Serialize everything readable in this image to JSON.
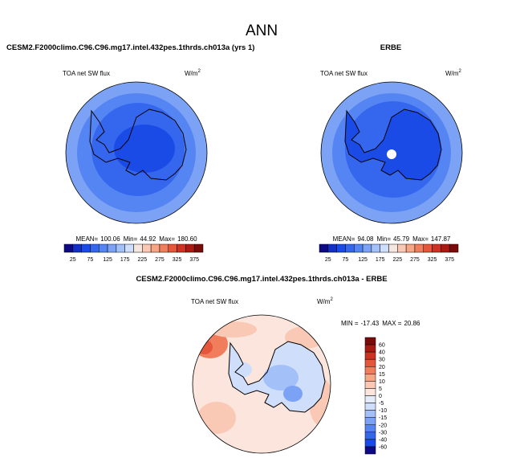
{
  "title": "ANN",
  "panels": [
    {
      "heading": "CESM2.F2000climo.C96.C96.mg17.intel.432pes.1thrds.ch013a (yrs 1)",
      "field": "TOA net SW flux",
      "units": {
        "base": "W/m",
        "sup": "2"
      },
      "stats": [
        {
          "label": "MEAN=",
          "value": "100.06"
        },
        {
          "label": "Min=",
          "value": "44.92"
        },
        {
          "label": "Max=",
          "value": "180.60"
        }
      ]
    },
    {
      "heading": "ERBE",
      "field": "TOA net SW flux",
      "units": {
        "base": "W/m",
        "sup": "2"
      },
      "stats": [
        {
          "label": "MEAN=",
          "value": "94.08"
        },
        {
          "label": "Min=",
          "value": "45.79"
        },
        {
          "label": "Max=",
          "value": "147.87"
        }
      ]
    }
  ],
  "colorbar": {
    "colors": [
      "#0d0a84",
      "#1230c8",
      "#1a4be6",
      "#3567ee",
      "#5585f2",
      "#7ba2f5",
      "#a3c0f8",
      "#cfdefa",
      "#f5e6e0",
      "#f9c9b5",
      "#f6a585",
      "#f07e5c",
      "#e4573c",
      "#cd3223",
      "#a81a12",
      "#7a0b0a"
    ],
    "ticks": [
      25,
      75,
      125,
      175,
      225,
      275,
      325,
      375
    ]
  },
  "difference": {
    "heading": "CESM2.F2000climo.C96.C96.mg17.intel.432pes.1thrds.ch013a - ERBE",
    "field": "TOA net SW flux",
    "units": {
      "base": "W/m",
      "sup": "2"
    },
    "stats": [
      {
        "label": "MIN =",
        "value": "-17.43"
      },
      {
        "label": "MAX =",
        "value": "20.86"
      }
    ],
    "colorbar": {
      "colors": [
        "#7a0b0a",
        "#a81a12",
        "#cd3223",
        "#e4573c",
        "#f07e5c",
        "#f6a585",
        "#f9c9b5",
        "#fbe5dc",
        "#e4ecfa",
        "#cfdefa",
        "#a3c0f8",
        "#7ba2f5",
        "#5585f2",
        "#3567ee",
        "#1a4be6",
        "#0d0a84"
      ],
      "ticks": [
        60,
        40,
        30,
        20,
        15,
        10,
        5,
        0,
        -5,
        -10,
        -15,
        -20,
        -30,
        -40,
        -60
      ]
    }
  }
}
